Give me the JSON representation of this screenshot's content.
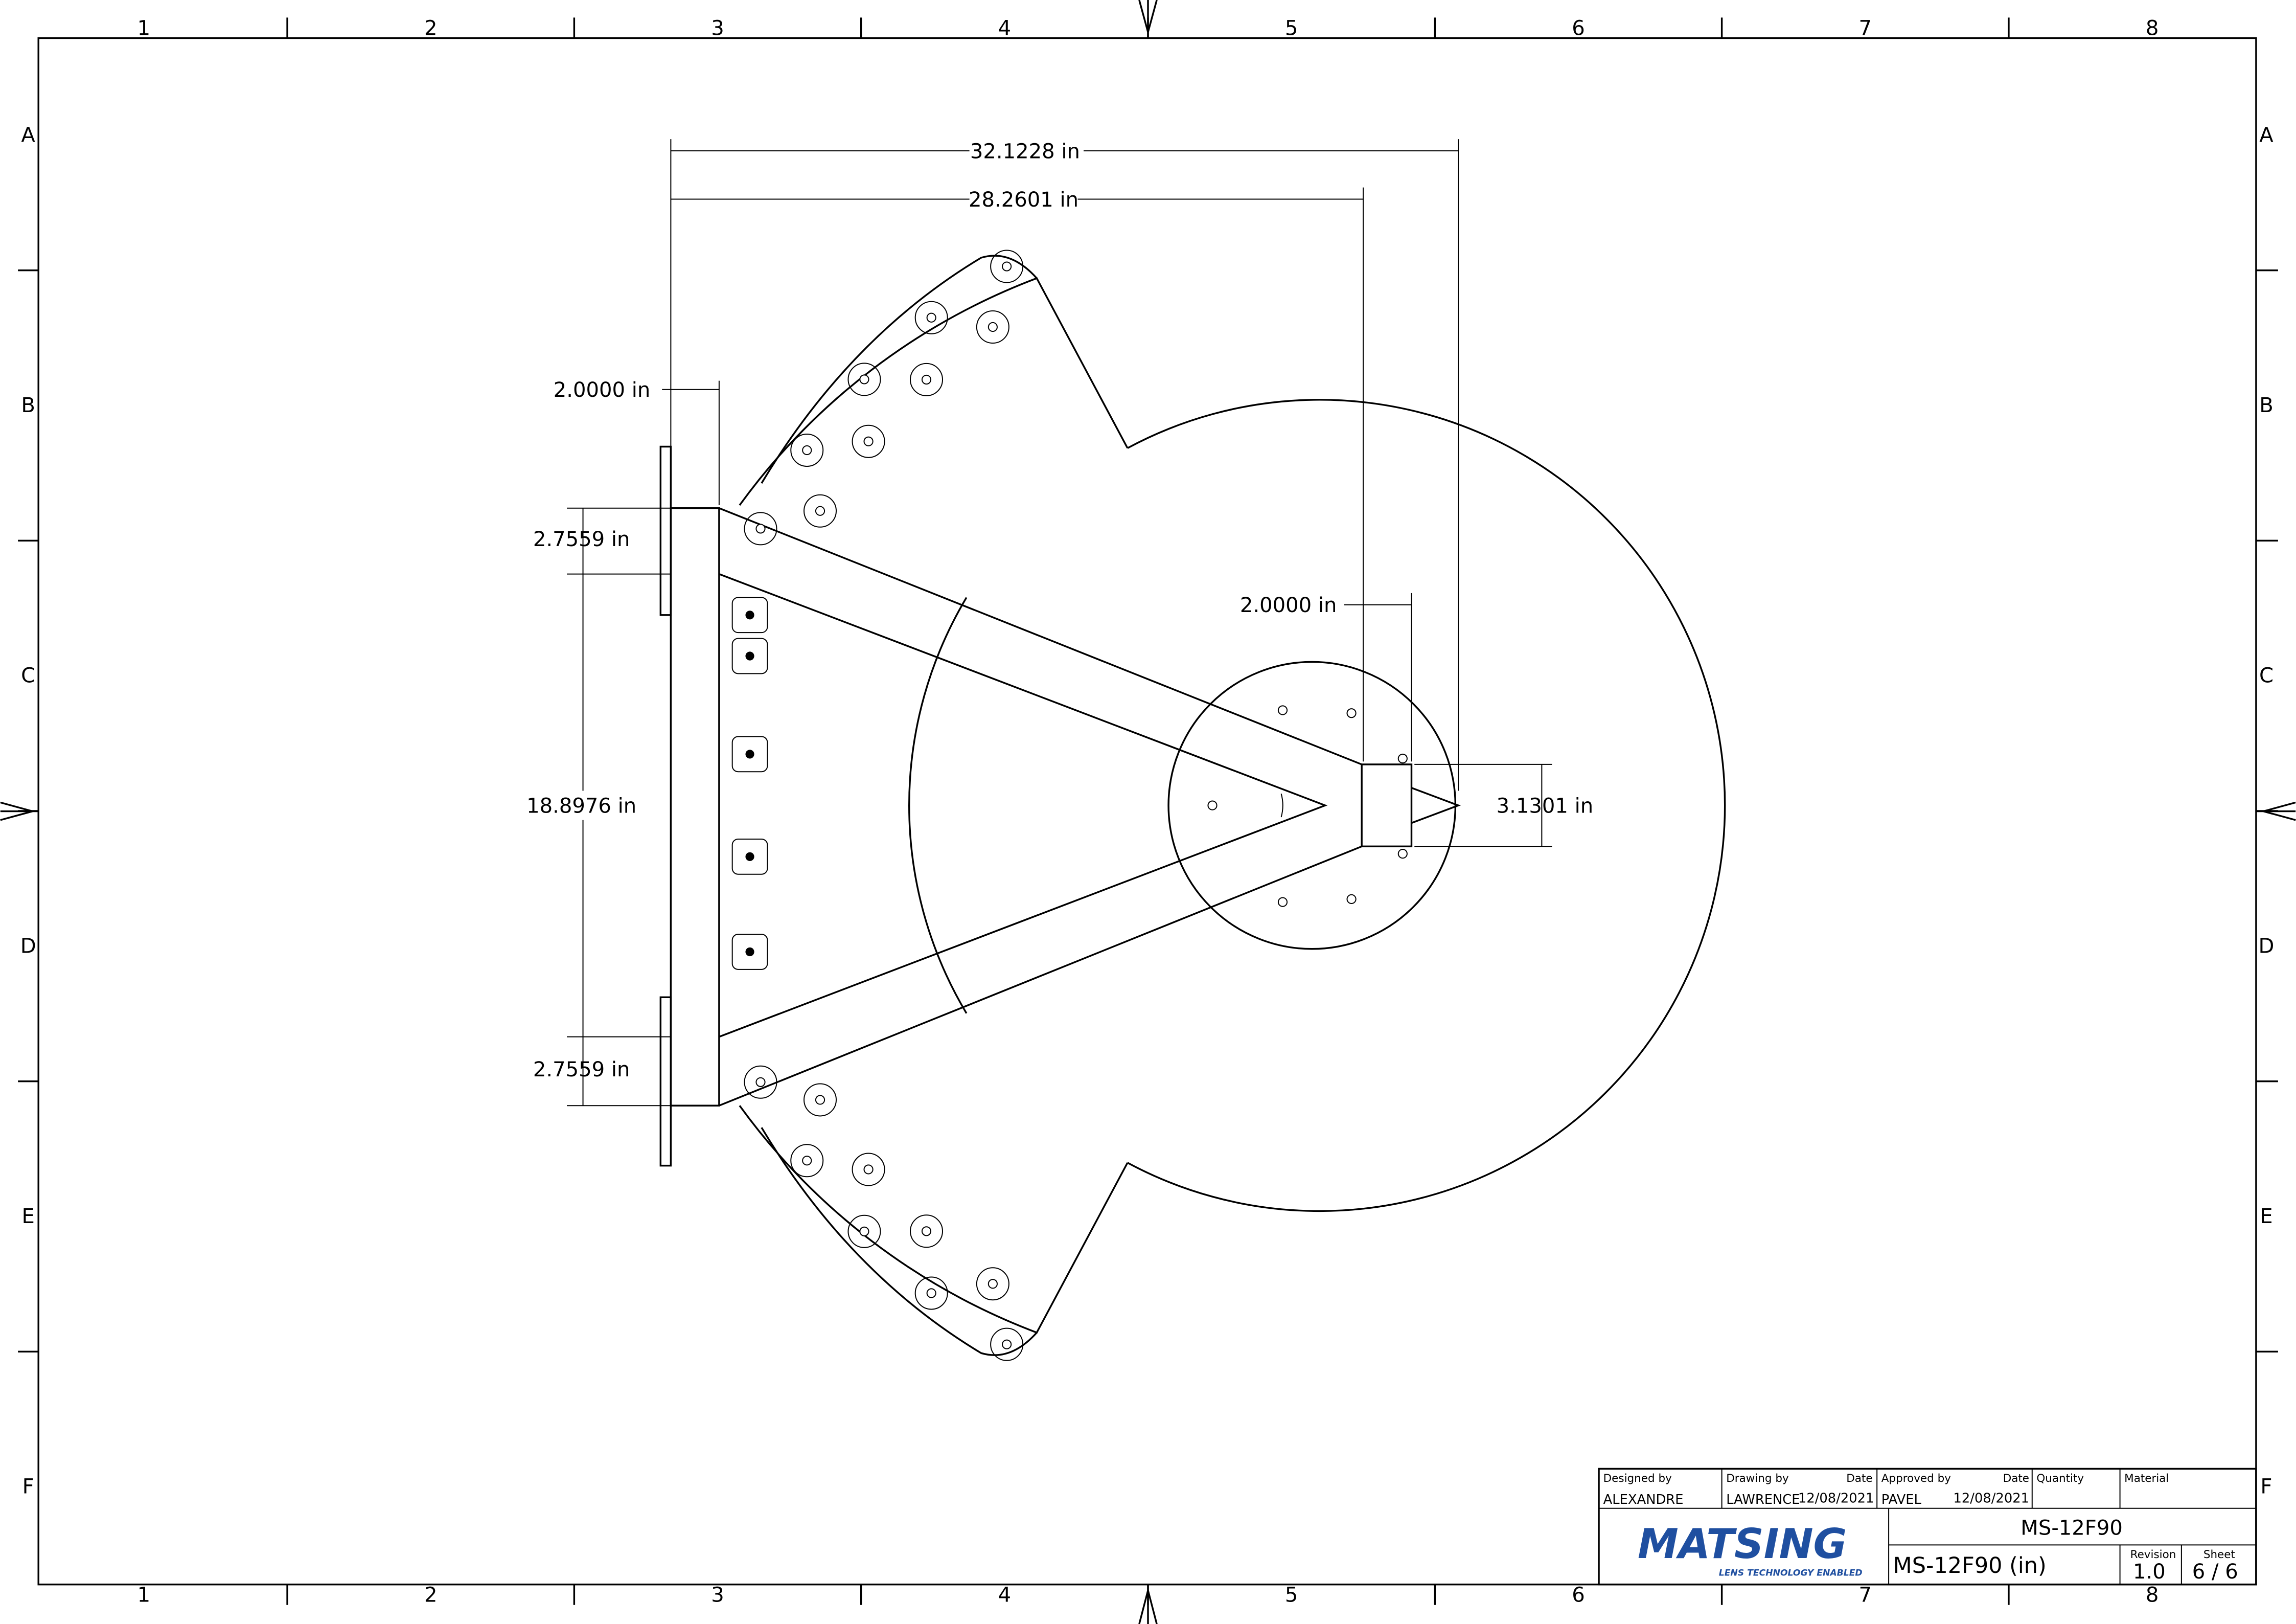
{
  "border": {
    "columns": [
      "1",
      "2",
      "3",
      "4",
      "5",
      "6",
      "7",
      "8"
    ],
    "rows": [
      "A",
      "B",
      "C",
      "D",
      "E",
      "F"
    ]
  },
  "dimensions": {
    "overall_length": "32.1228 in",
    "frame_length": "28.2601 in",
    "plate_offset": "2.0000 in",
    "top_flange": "2.7559 in",
    "flange_spacing": "18.8976 in",
    "bottom_flange": "2.7559 in",
    "hub_offset": "2.0000 in",
    "tip_width": "3.1301 in"
  },
  "title_block": {
    "designed_by_label": "Designed by",
    "designed_by": "ALEXANDRE",
    "drawing_by_label": "Drawing by",
    "drawing_by": "LAWRENCE",
    "date_label": "Date",
    "drawing_date": "12/08/2021",
    "approved_by_label": "Approved by",
    "approved_by": "PAVEL",
    "approved_date": "12/08/2021",
    "quantity_label": "Quantity",
    "material_label": "Material",
    "part_name": "MS-12F90",
    "drawing_title": "MS-12F90 (in)",
    "revision_label": "Revision",
    "revision": "1.0",
    "sheet_label": "Sheet",
    "sheet": "6 / 6",
    "logo": "MATSING",
    "logo_tagline": "LENS TECHNOLOGY ENABLED"
  }
}
